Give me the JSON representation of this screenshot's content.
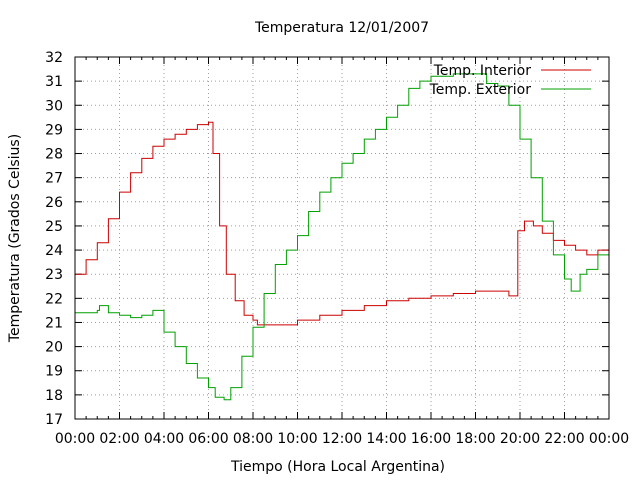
{
  "chart_data": {
    "type": "line",
    "title": "Temperatura 12/01/2007",
    "xlabel": "Tiempo (Hora Local Argentina)",
    "ylabel": "Temperatura (Grados Celsius)",
    "xlim": [
      0,
      24
    ],
    "ylim": [
      17,
      32
    ],
    "grid": true,
    "legend_position": "top-right",
    "x_tick_labels": [
      "00:00",
      "02:00",
      "04:00",
      "06:00",
      "08:00",
      "10:00",
      "12:00",
      "14:00",
      "16:00",
      "18:00",
      "20:00",
      "22:00",
      "00:00"
    ],
    "y_tick_labels": [
      "17",
      "18",
      "19",
      "20",
      "21",
      "22",
      "23",
      "24",
      "25",
      "26",
      "27",
      "28",
      "29",
      "30",
      "31",
      "32"
    ],
    "series": [
      {
        "name": "Temp. Interior",
        "color": "#cc0000",
        "x": [
          0,
          0.5,
          1,
          1.5,
          2,
          2.5,
          3,
          3.5,
          4,
          4.5,
          5,
          5.5,
          6,
          6.2,
          6.5,
          6.8,
          7.2,
          7.6,
          8,
          8.2,
          9,
          9.5,
          10,
          11,
          12,
          13,
          14,
          15,
          16,
          17,
          18,
          19,
          19.5,
          19.9,
          20.2,
          20.6,
          21,
          21.5,
          22,
          22.5,
          23,
          23.5,
          24
        ],
        "y": [
          23.0,
          23.6,
          24.3,
          25.3,
          26.4,
          27.2,
          27.8,
          28.3,
          28.6,
          28.8,
          29.0,
          29.2,
          29.3,
          28.0,
          25.0,
          23.0,
          21.9,
          21.3,
          21.1,
          20.9,
          20.9,
          20.9,
          21.1,
          21.3,
          21.5,
          21.7,
          21.9,
          22.0,
          22.1,
          22.2,
          22.3,
          22.3,
          22.1,
          24.8,
          25.2,
          25.0,
          24.7,
          24.4,
          24.2,
          24.0,
          23.8,
          24.0,
          24.4
        ]
      },
      {
        "name": "Temp. Exterior",
        "color": "#00a000",
        "x": [
          0,
          0.5,
          1,
          1.1,
          1.5,
          2,
          2.5,
          3,
          3.5,
          4,
          4.5,
          5,
          5.5,
          6,
          6.3,
          6.7,
          7,
          7.5,
          8,
          8.5,
          9,
          9.5,
          10,
          10.5,
          11,
          11.5,
          12,
          12.5,
          13,
          13.5,
          14,
          14.5,
          15,
          15.5,
          16,
          16.5,
          17,
          17.5,
          18,
          18.5,
          19,
          19.5,
          20,
          20.5,
          21,
          21.5,
          22,
          22.3,
          22.7,
          23,
          23.5,
          24
        ],
        "y": [
          21.4,
          21.4,
          21.5,
          21.7,
          21.4,
          21.3,
          21.2,
          21.3,
          21.5,
          20.6,
          20.0,
          19.3,
          18.7,
          18.3,
          17.9,
          17.8,
          18.3,
          19.6,
          20.8,
          22.2,
          23.4,
          24.0,
          24.6,
          25.6,
          26.4,
          27.0,
          27.6,
          28.0,
          28.6,
          29.0,
          29.5,
          30.0,
          30.7,
          31.0,
          31.2,
          31.2,
          31.3,
          31.3,
          31.3,
          30.9,
          30.8,
          30.0,
          28.6,
          27.0,
          25.2,
          23.8,
          22.8,
          22.3,
          23.0,
          23.2,
          23.8,
          23.5
        ]
      }
    ]
  }
}
